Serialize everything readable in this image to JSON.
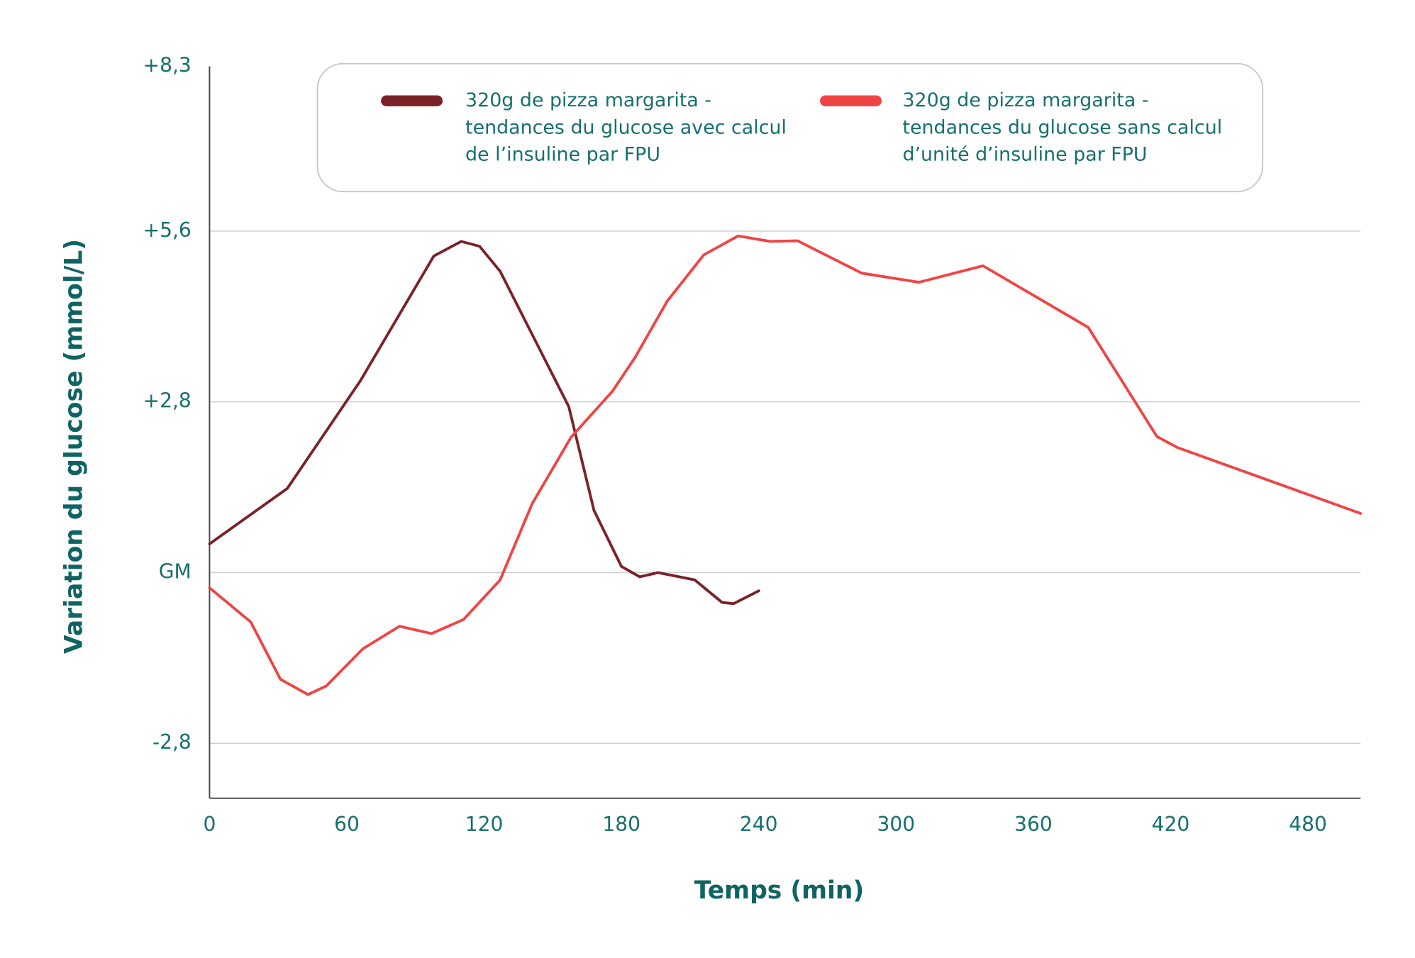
{
  "chart_data": {
    "type": "line",
    "xlabel": "Temps (min)",
    "ylabel": "Variation du glucose (mmol/L)",
    "xlim": [
      0,
      503
    ],
    "xticks": [
      0,
      60,
      120,
      180,
      240,
      300,
      360,
      420,
      480
    ],
    "ylim": [
      -3.7,
      8.3
    ],
    "yticks": [
      {
        "value": -2.8,
        "label": "-2,8"
      },
      {
        "value": 0,
        "label": "GM"
      },
      {
        "value": 2.8,
        "label": "+2,8"
      },
      {
        "value": 5.6,
        "label": "+5,6"
      },
      {
        "value": 8.3,
        "label": "+8,3"
      }
    ],
    "grid": true,
    "series": [
      {
        "name": "320g de pizza margarita - tendances du glucose avec calcul de l’insuline par FPU",
        "color": "#7a2228",
        "x": [
          0,
          34,
          66,
          98,
          110,
          118,
          127,
          157,
          168,
          180,
          188,
          196,
          212,
          224,
          229,
          240
        ],
        "values": [
          0.47,
          1.38,
          3.15,
          5.19,
          5.43,
          5.35,
          4.94,
          2.72,
          1.02,
          0.1,
          -0.07,
          0,
          -0.12,
          -0.49,
          -0.51,
          -0.3
        ]
      },
      {
        "name": "320g de pizza margarita - tendances du glucose sans calcul d’unité d’insuline par FPU",
        "color": "#f04444",
        "x": [
          0,
          18,
          31,
          43,
          51,
          67,
          83,
          97,
          111,
          127,
          141,
          158,
          176,
          186,
          200,
          216,
          231,
          245,
          257,
          285,
          310,
          338,
          384,
          414,
          423,
          503
        ],
        "values": [
          -0.25,
          -0.81,
          -1.75,
          -2.0,
          -1.86,
          -1.25,
          -0.88,
          -1.0,
          -0.77,
          -0.12,
          1.13,
          2.22,
          2.97,
          3.53,
          4.45,
          5.21,
          5.52,
          5.43,
          5.44,
          4.91,
          4.76,
          5.03,
          4.02,
          2.23,
          2.05,
          0.97
        ]
      }
    ]
  }
}
